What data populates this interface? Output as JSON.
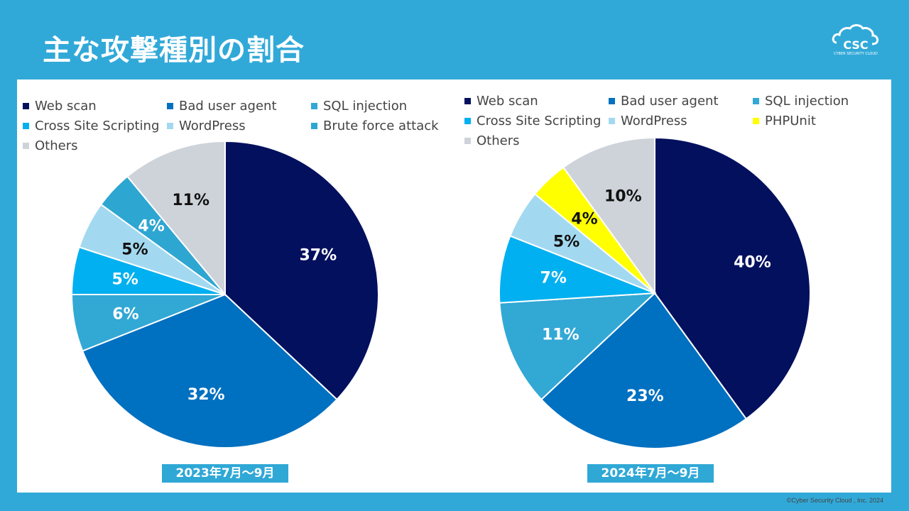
{
  "title": "主な攻撃種別の割合",
  "logo": {
    "text": "CSC",
    "subtext": "CYBER SECURITY CLOUD"
  },
  "footer": "©Cyber Security Cloud , Inc. 2024",
  "colors": {
    "background": "#31a9d8",
    "panel": "#ffffff",
    "period_label_bg": "#2fa8d6"
  },
  "chart_data": [
    {
      "type": "pie",
      "period": "2023年7月～9月",
      "legend": [
        "Web scan",
        "Bad user agent",
        "SQL injection",
        "Cross Site Scripting",
        "WordPress",
        "Brute force attack",
        "Others"
      ],
      "slices": [
        {
          "name": "Web scan",
          "value": 37,
          "label": "37%",
          "color": "#03105e"
        },
        {
          "name": "Bad user agent",
          "value": 32,
          "label": "32%",
          "color": "#0070c0"
        },
        {
          "name": "SQL injection",
          "value": 6,
          "label": "6%",
          "color": "#32a8d5"
        },
        {
          "name": "Cross Site Scripting",
          "value": 5,
          "label": "5%",
          "color": "#00b0f0"
        },
        {
          "name": "WordPress",
          "value": 5,
          "label": "5%",
          "color": "#a3d9f0"
        },
        {
          "name": "Brute force attack",
          "value": 4,
          "label": "4%",
          "color": "#2ea6d2"
        },
        {
          "name": "Others",
          "value": 11,
          "label": "11%",
          "color": "#cdd3d9"
        }
      ]
    },
    {
      "type": "pie",
      "period": "2024年7月～9月",
      "legend": [
        "Web scan",
        "Bad user agent",
        "SQL injection",
        "Cross Site Scripting",
        "WordPress",
        "PHPUnit",
        "Others"
      ],
      "slices": [
        {
          "name": "Web scan",
          "value": 40,
          "label": "40%",
          "color": "#03105e"
        },
        {
          "name": "Bad user agent",
          "value": 23,
          "label": "23%",
          "color": "#0070c0"
        },
        {
          "name": "SQL injection",
          "value": 11,
          "label": "11%",
          "color": "#32a8d5"
        },
        {
          "name": "Cross Site Scripting",
          "value": 7,
          "label": "7%",
          "color": "#00b0f0"
        },
        {
          "name": "WordPress",
          "value": 5,
          "label": "5%",
          "color": "#a3d9f0"
        },
        {
          "name": "PHPUnit",
          "value": 4,
          "label": "4%",
          "color": "#ffff00"
        },
        {
          "name": "Others",
          "value": 10,
          "label": "10%",
          "color": "#cdd3d9"
        }
      ]
    }
  ]
}
